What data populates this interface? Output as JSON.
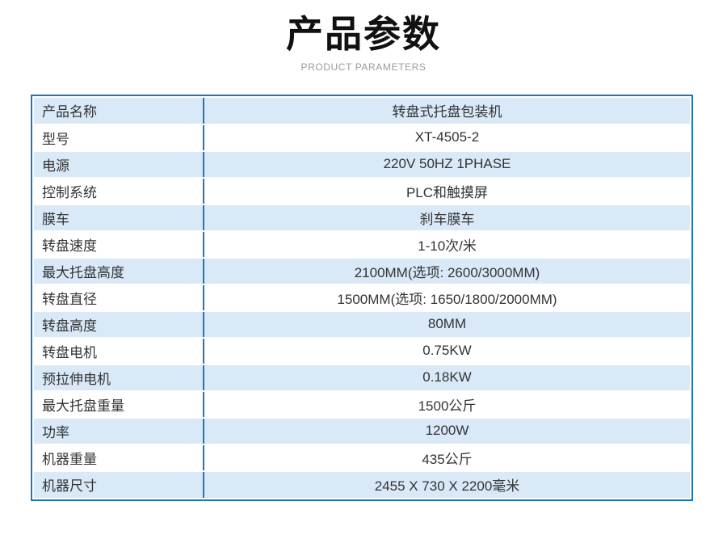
{
  "page": {
    "title": "产品参数",
    "subtitle": "PRODUCT PARAMETERS"
  },
  "colors": {
    "accent_blue": "#1878c0",
    "row_light_blue": "#d9e9f8",
    "row_white": "#ffffff",
    "title_black": "#111111",
    "subtitle_gray": "#9b9b9b",
    "text_dark": "#333333"
  },
  "table": {
    "rows": [
      {
        "label": "产品名称",
        "value": "转盘式托盘包装机"
      },
      {
        "label": "型号",
        "value": "XT-4505-2"
      },
      {
        "label": "电源",
        "value": "220V 50HZ 1PHASE"
      },
      {
        "label": "控制系统",
        "value": "PLC和触摸屏"
      },
      {
        "label": "膜车",
        "value": "刹车膜车"
      },
      {
        "label": "转盘速度",
        "value": "1-10次/米"
      },
      {
        "label": "最大托盘高度",
        "value": "2100MM(选项: 2600/3000MM)"
      },
      {
        "label": "转盘直径",
        "value": "1500MM(选项: 1650/1800/2000MM)"
      },
      {
        "label": "转盘高度",
        "value": "80MM"
      },
      {
        "label": "转盘电机",
        "value": "0.75KW"
      },
      {
        "label": "预拉伸电机",
        "value": "0.18KW"
      },
      {
        "label": "最大托盘重量",
        "value": "1500公斤"
      },
      {
        "label": "功率",
        "value": "1200W"
      },
      {
        "label": "机器重量",
        "value": "435公斤"
      },
      {
        "label": "机器尺寸",
        "value": "2455 X 730 X 2200毫米"
      }
    ]
  }
}
